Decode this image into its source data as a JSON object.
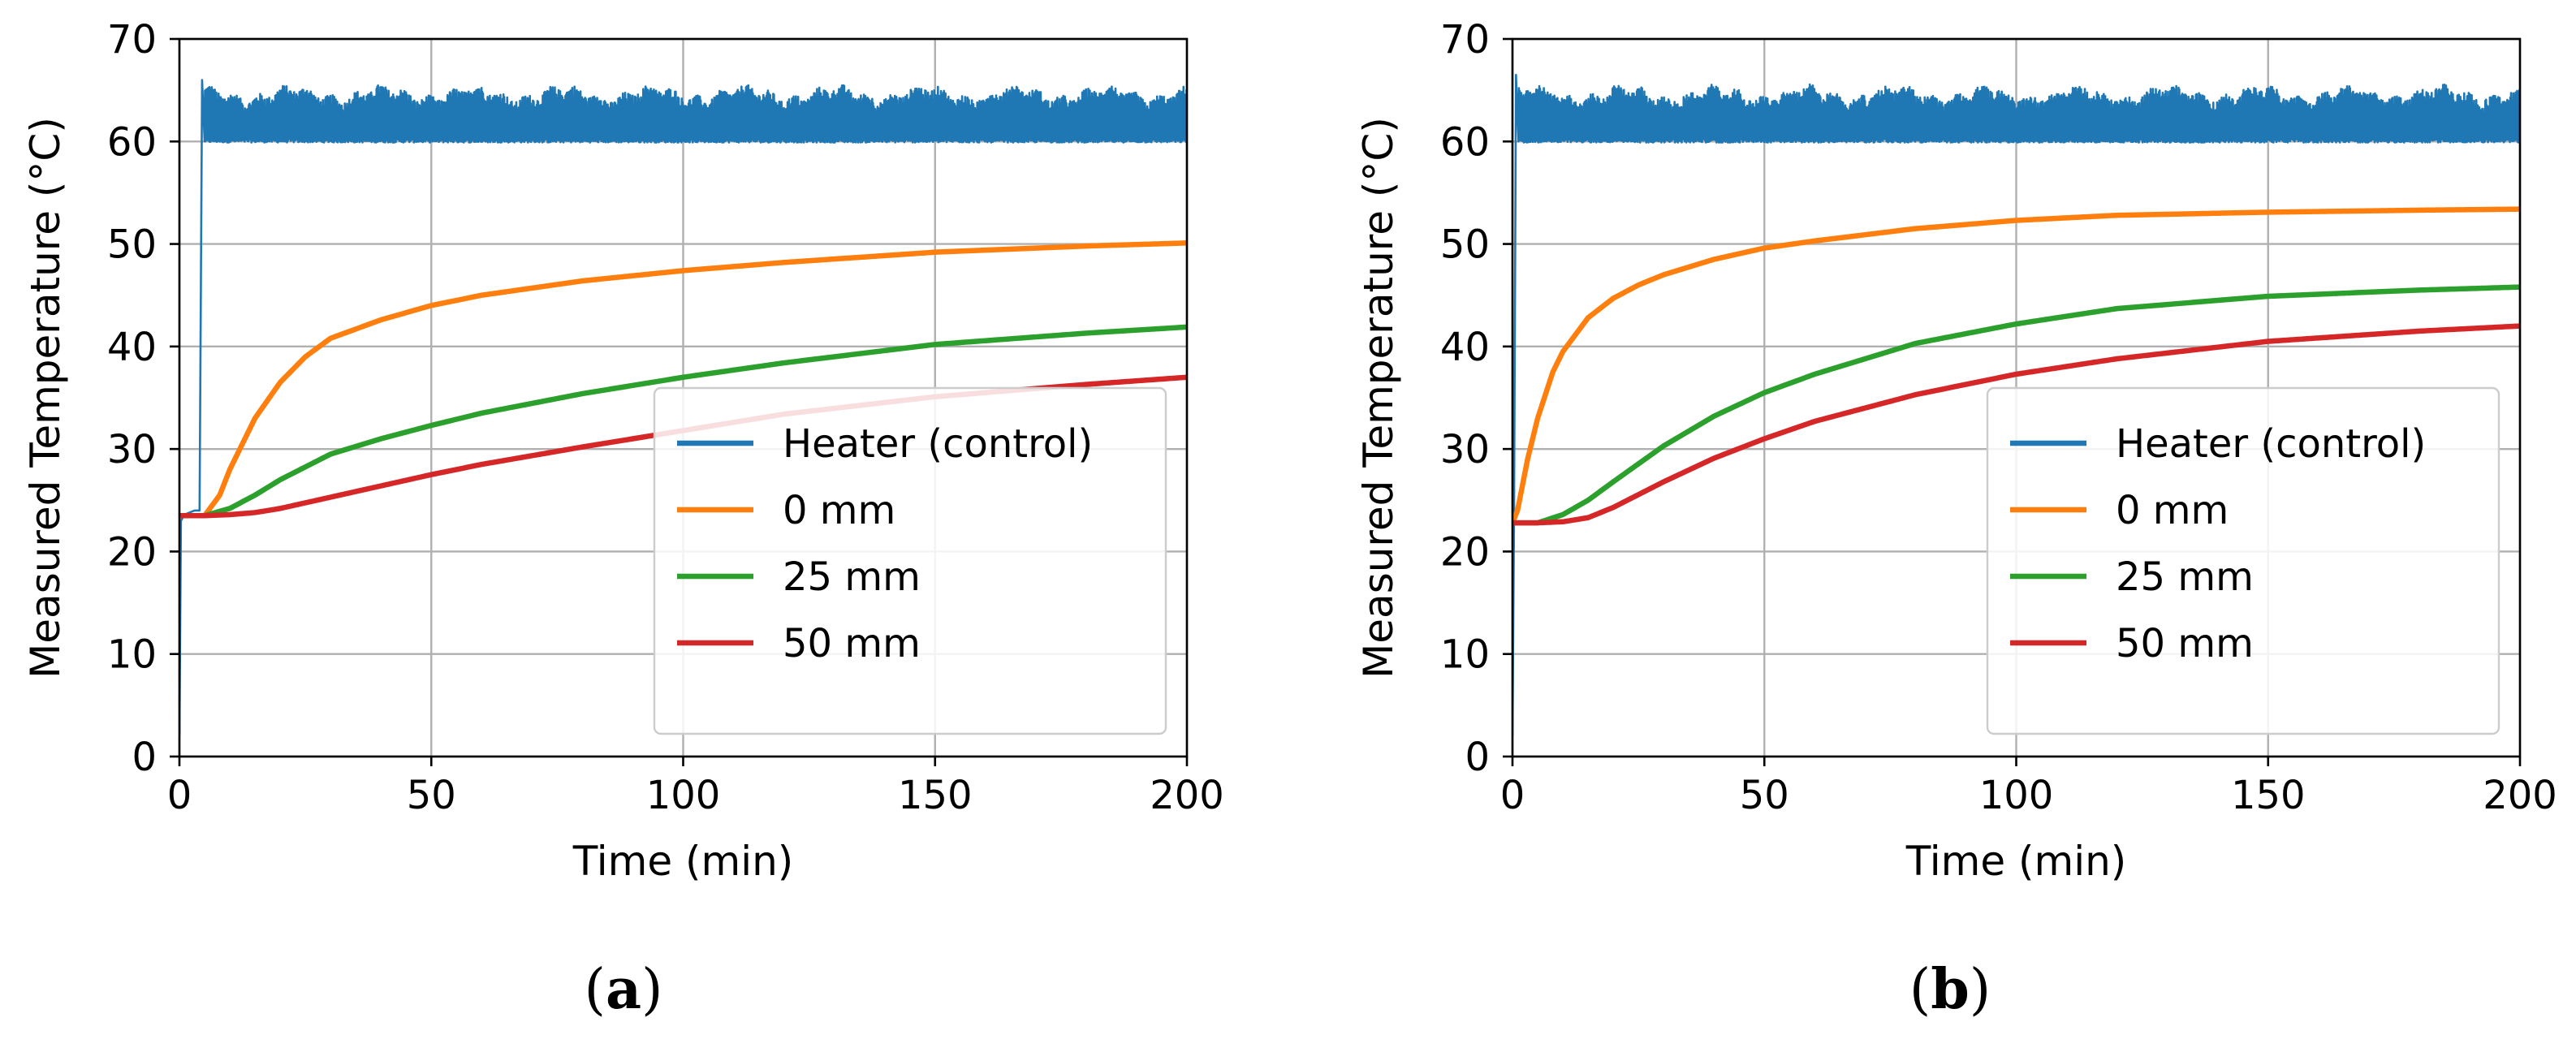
{
  "chart_data": [
    {
      "type": "line",
      "panel": "a",
      "xlabel": "Time (min)",
      "ylabel": "Measured Temperature (°C)",
      "xlim": [
        0,
        200
      ],
      "ylim": [
        0,
        70
      ],
      "xticks": [
        0,
        50,
        100,
        150,
        200
      ],
      "yticks": [
        0,
        10,
        20,
        30,
        40,
        50,
        60,
        70
      ],
      "grid": true,
      "legend_position": "lower-right",
      "series": [
        {
          "name": "Heater (control)",
          "color": "#1f77b4",
          "kind": "noisy",
          "x": [
            0,
            0.3,
            1,
            2,
            3,
            4,
            4.5,
            5,
            200
          ],
          "y": [
            2,
            23,
            23.6,
            23.8,
            24,
            24,
            66,
            60,
            62
          ]
        },
        {
          "name": "0 mm",
          "color": "#ff7f0e",
          "x": [
            0,
            5,
            8,
            10,
            15,
            20,
            25,
            30,
            40,
            50,
            60,
            80,
            100,
            120,
            150,
            180,
            200
          ],
          "y": [
            23.5,
            23.5,
            25.5,
            28,
            33,
            36.5,
            39,
            40.8,
            42.6,
            44,
            45,
            46.4,
            47.4,
            48.2,
            49.2,
            49.8,
            50.1
          ]
        },
        {
          "name": "25 mm",
          "color": "#2ca02c",
          "x": [
            0,
            5,
            10,
            15,
            20,
            30,
            40,
            50,
            60,
            80,
            100,
            120,
            150,
            180,
            200
          ],
          "y": [
            23.5,
            23.5,
            24.2,
            25.5,
            27,
            29.5,
            31,
            32.3,
            33.5,
            35.4,
            37,
            38.4,
            40.2,
            41.3,
            41.9
          ]
        },
        {
          "name": "50 mm",
          "color": "#d62728",
          "x": [
            0,
            5,
            10,
            15,
            20,
            30,
            40,
            50,
            60,
            80,
            100,
            120,
            150,
            180,
            200
          ],
          "y": [
            23.5,
            23.5,
            23.6,
            23.8,
            24.2,
            25.3,
            26.4,
            27.5,
            28.5,
            30.2,
            31.8,
            33.4,
            35.1,
            36.3,
            37
          ]
        }
      ]
    },
    {
      "type": "line",
      "panel": "b",
      "xlabel": "Time (min)",
      "ylabel": "Measured Temperature (°C)",
      "xlim": [
        0,
        200
      ],
      "ylim": [
        0,
        70
      ],
      "xticks": [
        0,
        50,
        100,
        150,
        200
      ],
      "yticks": [
        0,
        10,
        20,
        30,
        40,
        50,
        60,
        70
      ],
      "grid": true,
      "legend_position": "lower-right",
      "series": [
        {
          "name": "Heater (control)",
          "color": "#1f77b4",
          "kind": "noisy",
          "x": [
            0,
            0.3,
            0.7,
            1.2,
            200
          ],
          "y": [
            2,
            22.8,
            66.5,
            60,
            62
          ]
        },
        {
          "name": "0 mm",
          "color": "#ff7f0e",
          "x": [
            0,
            1,
            3,
            5,
            8,
            10,
            15,
            20,
            25,
            30,
            40,
            50,
            60,
            80,
            100,
            120,
            150,
            180,
            200
          ],
          "y": [
            22.8,
            24,
            29,
            33,
            37.5,
            39.5,
            42.8,
            44.7,
            46,
            47,
            48.5,
            49.6,
            50.3,
            51.5,
            52.3,
            52.8,
            53.1,
            53.3,
            53.4
          ]
        },
        {
          "name": "25 mm",
          "color": "#2ca02c",
          "x": [
            0,
            5,
            10,
            15,
            20,
            30,
            40,
            50,
            60,
            80,
            100,
            120,
            150,
            180,
            200
          ],
          "y": [
            22.8,
            22.8,
            23.6,
            25,
            26.8,
            30.3,
            33.2,
            35.5,
            37.3,
            40.3,
            42.2,
            43.7,
            44.9,
            45.5,
            45.8
          ]
        },
        {
          "name": "50 mm",
          "color": "#d62728",
          "x": [
            0,
            5,
            10,
            15,
            20,
            30,
            40,
            50,
            60,
            80,
            100,
            120,
            150,
            180,
            200
          ],
          "y": [
            22.8,
            22.8,
            22.9,
            23.3,
            24.3,
            26.8,
            29.1,
            31,
            32.7,
            35.3,
            37.3,
            38.8,
            40.5,
            41.5,
            42
          ]
        }
      ]
    }
  ],
  "captions": [
    {
      "open": "(",
      "letter": "a",
      "close": ")"
    },
    {
      "open": "(",
      "letter": "b",
      "close": ")"
    }
  ]
}
